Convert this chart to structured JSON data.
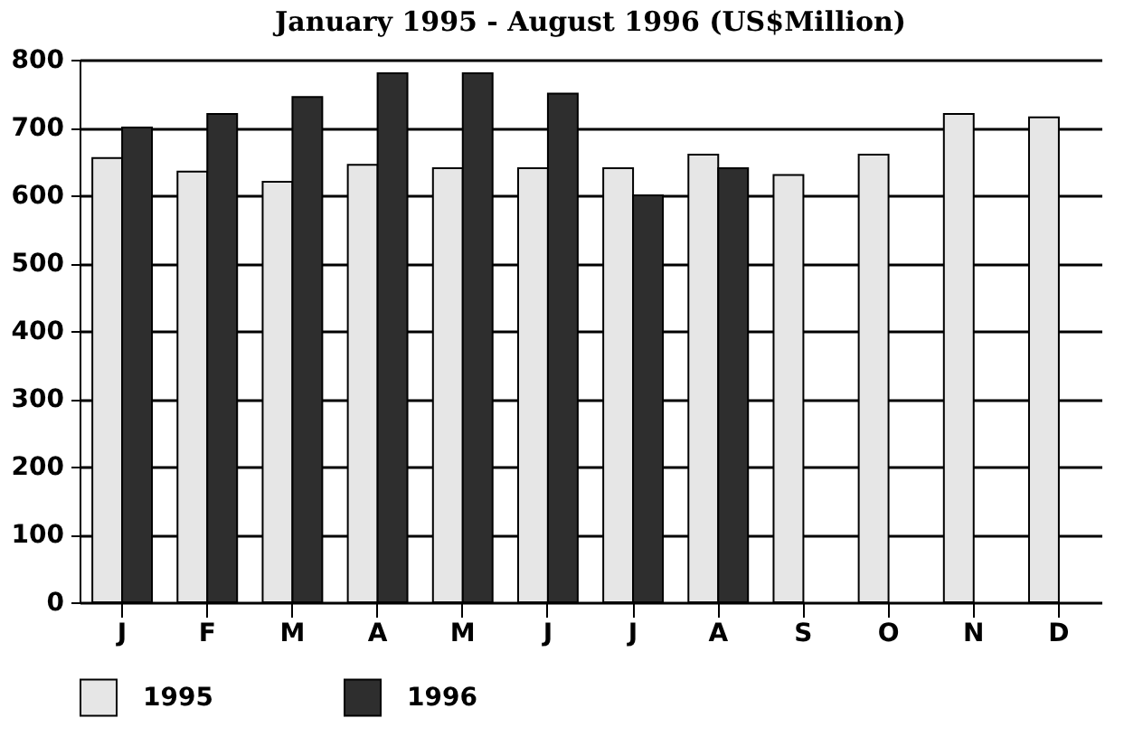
{
  "chart_data": {
    "type": "bar",
    "title": "January 1995 - August 1996 (US$Million)",
    "categories": [
      "J",
      "F",
      "M",
      "A",
      "M",
      "J",
      "J",
      "A",
      "S",
      "O",
      "N",
      "D"
    ],
    "series": [
      {
        "name": "1995",
        "color": "#e6e6e6",
        "values": [
          655,
          635,
          620,
          645,
          640,
          640,
          640,
          660,
          630,
          660,
          720,
          715
        ]
      },
      {
        "name": "1996",
        "color": "#2e2e2e",
        "values": [
          700,
          720,
          745,
          780,
          780,
          750,
          600,
          640,
          null,
          null,
          null,
          null
        ]
      }
    ],
    "ylim": [
      0,
      800
    ],
    "yticks": [
      0,
      100,
      200,
      300,
      400,
      500,
      600,
      700,
      800
    ],
    "grid": "y",
    "legend": "bottom"
  }
}
